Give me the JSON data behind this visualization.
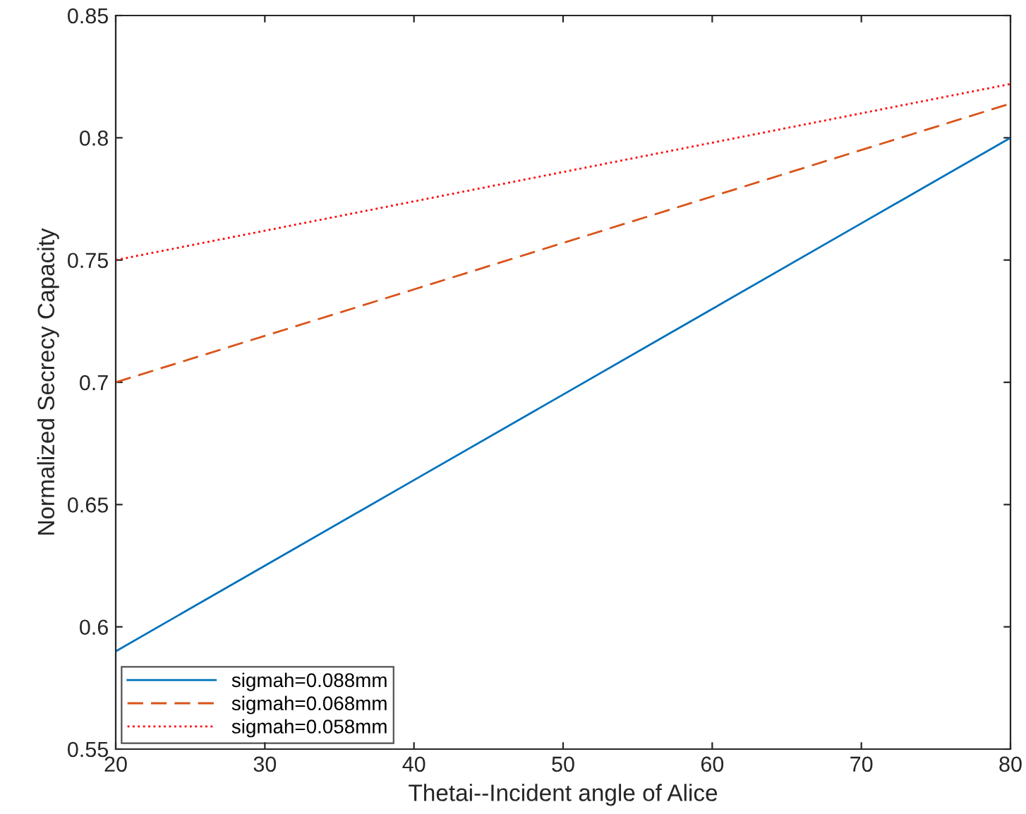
{
  "chart_data": {
    "type": "line",
    "xlabel": "Thetai--Incident angle of Alice",
    "ylabel": "Normalized Secrecy Capacity",
    "x": [
      20,
      30,
      40,
      50,
      60,
      70,
      80
    ],
    "series": [
      {
        "name": "sigmah=0.088mm",
        "color": "#0072bd",
        "line_style": "solid",
        "values": [
          0.59,
          0.625,
          0.66,
          0.695,
          0.73,
          0.765,
          0.8
        ]
      },
      {
        "name": "sigmah=0.068mm",
        "color": "#d95319",
        "line_style": "dashed",
        "values": [
          0.7,
          0.719,
          0.738,
          0.757,
          0.776,
          0.795,
          0.814
        ]
      },
      {
        "name": "sigmah=0.058mm",
        "color": "#ff0000",
        "line_style": "dotted",
        "values": [
          0.75,
          0.762,
          0.774,
          0.786,
          0.798,
          0.81,
          0.822
        ]
      }
    ],
    "xlim": [
      20,
      80
    ],
    "xticks": [
      20,
      30,
      40,
      50,
      60,
      70,
      80
    ],
    "ylim": [
      0.55,
      0.85
    ],
    "yticks": [
      0.55,
      0.6,
      0.65,
      0.7,
      0.75,
      0.8,
      0.85
    ],
    "grid": false,
    "legend": "bottom left"
  }
}
